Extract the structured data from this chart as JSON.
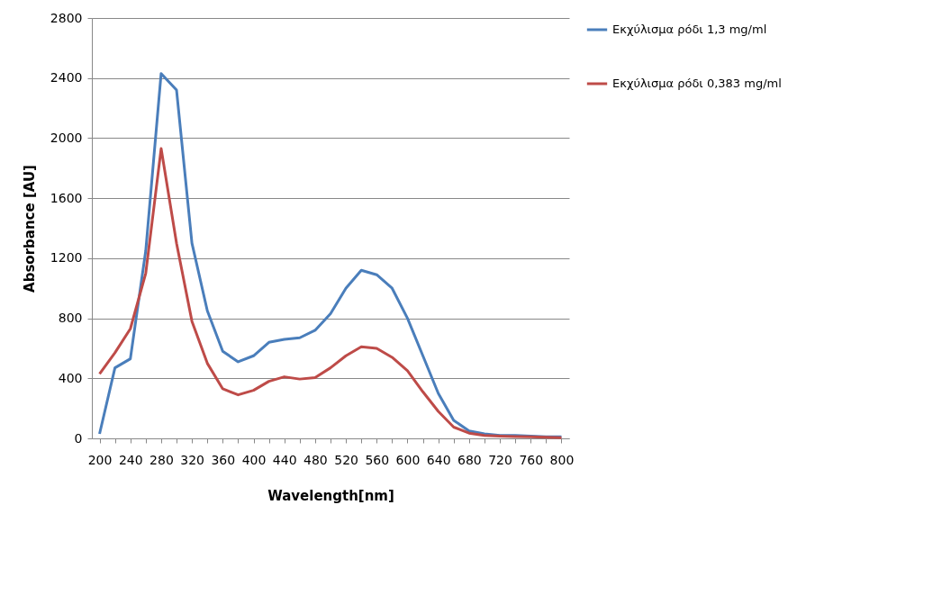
{
  "chart_data": {
    "type": "line",
    "xlabel": "Wavelength[nm]",
    "ylabel": "Absorbance [AU]",
    "categories": [
      "200",
      null,
      "240",
      null,
      "280",
      null,
      "320",
      null,
      "360",
      null,
      "400",
      null,
      "440",
      null,
      "480",
      null,
      "520",
      null,
      "560",
      null,
      "600",
      null,
      "640",
      null,
      "680",
      null,
      "720",
      null,
      "760",
      null,
      "800"
    ],
    "series": [
      {
        "name": "Εκχύλισμα ρόδι 1,3 mg/ml",
        "color": "#4a7ebb",
        "values": [
          30,
          470,
          530,
          1250,
          2430,
          2320,
          1300,
          850,
          580,
          510,
          550,
          640,
          660,
          670,
          720,
          830,
          1000,
          1120,
          1090,
          1000,
          800,
          550,
          300,
          120,
          50,
          30,
          20,
          20,
          15,
          10,
          10
        ]
      },
      {
        "name": "Εκχύλισμα ρόδι 0,383 mg/ml",
        "color": "#be4b48",
        "values": [
          430,
          570,
          730,
          1100,
          1930,
          1300,
          780,
          500,
          330,
          290,
          320,
          380,
          410,
          395,
          405,
          470,
          550,
          610,
          600,
          540,
          450,
          310,
          180,
          75,
          35,
          20,
          15,
          12,
          10,
          8,
          5
        ]
      }
    ],
    "ylim": [
      0,
      2800
    ],
    "yticks": [
      0,
      400,
      800,
      1200,
      1600,
      2000,
      2400,
      2800
    ],
    "grid": "y",
    "legend": "right",
    "marker": "none",
    "line_style": "solid"
  }
}
